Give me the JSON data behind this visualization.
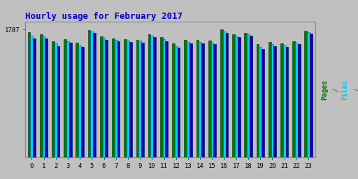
{
  "title": "Hourly usage for February 2017",
  "title_color": "#0000cc",
  "title_fontsize": 9,
  "hours": [
    0,
    1,
    2,
    3,
    4,
    5,
    6,
    7,
    8,
    9,
    10,
    11,
    12,
    13,
    14,
    15,
    16,
    17,
    18,
    19,
    20,
    21,
    22,
    23
  ],
  "pages": [
    1750,
    1720,
    1620,
    1650,
    1600,
    1780,
    1690,
    1660,
    1650,
    1645,
    1720,
    1680,
    1590,
    1640,
    1640,
    1630,
    1787,
    1720,
    1740,
    1580,
    1610,
    1590,
    1620,
    1770
  ],
  "files": [
    1700,
    1690,
    1590,
    1620,
    1565,
    1760,
    1670,
    1640,
    1635,
    1630,
    1700,
    1650,
    1560,
    1610,
    1615,
    1605,
    1760,
    1700,
    1720,
    1545,
    1580,
    1565,
    1600,
    1750
  ],
  "hits": [
    1660,
    1660,
    1560,
    1600,
    1545,
    1740,
    1645,
    1620,
    1610,
    1605,
    1680,
    1620,
    1540,
    1590,
    1590,
    1585,
    1740,
    1680,
    1700,
    1520,
    1555,
    1545,
    1580,
    1730
  ],
  "bar_color_pages": "#007700",
  "bar_color_files": "#00ccff",
  "bar_color_hits": "#0000bb",
  "bar_edge_pages": "#003300",
  "bar_edge_files": "#006688",
  "bar_edge_hits": "#000044",
  "background_color": "#c0c0c0",
  "plot_bg_color": "#c0c0c0",
  "ytick_val": 1787,
  "ylim_min": 0,
  "ylim_max": 1900
}
